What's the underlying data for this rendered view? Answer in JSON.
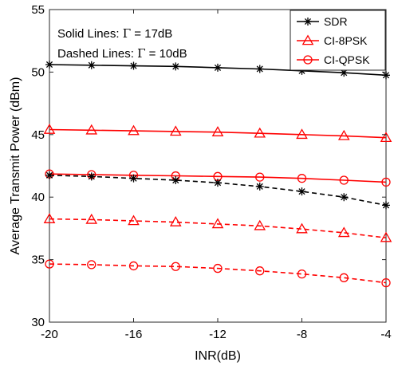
{
  "chart_data": {
    "type": "line",
    "xlabel": "INR(dB)",
    "ylabel": "Average Transmit Power (dBm)",
    "xlim": [
      -20,
      -4
    ],
    "ylim": [
      30,
      55
    ],
    "xticks": [
      -20,
      -16,
      -12,
      -8,
      -4
    ],
    "yticks": [
      30,
      35,
      40,
      45,
      50,
      55
    ],
    "grid": false,
    "legend_position": "top-right",
    "legend": [
      {
        "name": "SDR",
        "color": "#000000",
        "marker": "star"
      },
      {
        "name": "CI-8PSK",
        "color": "#ff0000",
        "marker": "triangle"
      },
      {
        "name": "CI-QPSK",
        "color": "#ff0000",
        "marker": "circle"
      }
    ],
    "annotations": [
      {
        "prefix": "Solid Lines: ",
        "symbol": "Γ",
        "suffix": " = 17dB"
      },
      {
        "prefix": "Dashed Lines: ",
        "symbol": "Γ",
        "suffix": " = 10dB"
      }
    ],
    "x": [
      -20,
      -18,
      -16,
      -14,
      -12,
      -10,
      -8,
      -6,
      -4
    ],
    "series": [
      {
        "name": "SDR",
        "gamma": "17dB",
        "style": "solid",
        "color": "#000000",
        "marker": "star",
        "values": [
          50.6,
          50.55,
          50.5,
          50.45,
          50.35,
          50.25,
          50.1,
          49.95,
          49.75
        ]
      },
      {
        "name": "CI-8PSK",
        "gamma": "17dB",
        "style": "solid",
        "color": "#ff0000",
        "marker": "triangle",
        "values": [
          45.4,
          45.35,
          45.3,
          45.25,
          45.2,
          45.1,
          45.0,
          44.9,
          44.75
        ]
      },
      {
        "name": "CI-QPSK",
        "gamma": "17dB",
        "style": "solid",
        "color": "#ff0000",
        "marker": "circle",
        "values": [
          41.85,
          41.8,
          41.75,
          41.7,
          41.65,
          41.6,
          41.5,
          41.35,
          41.2
        ]
      },
      {
        "name": "SDR",
        "gamma": "10dB",
        "style": "dashed",
        "color": "#000000",
        "marker": "star",
        "values": [
          41.75,
          41.65,
          41.5,
          41.35,
          41.15,
          40.85,
          40.45,
          40.0,
          39.35
        ]
      },
      {
        "name": "CI-8PSK",
        "gamma": "10dB",
        "style": "dashed",
        "color": "#ff0000",
        "marker": "triangle",
        "values": [
          38.25,
          38.2,
          38.1,
          38.0,
          37.85,
          37.7,
          37.45,
          37.15,
          36.75
        ]
      },
      {
        "name": "CI-QPSK",
        "gamma": "10dB",
        "style": "dashed",
        "color": "#ff0000",
        "marker": "circle",
        "values": [
          34.65,
          34.6,
          34.5,
          34.45,
          34.3,
          34.1,
          33.85,
          33.55,
          33.15
        ]
      }
    ]
  }
}
